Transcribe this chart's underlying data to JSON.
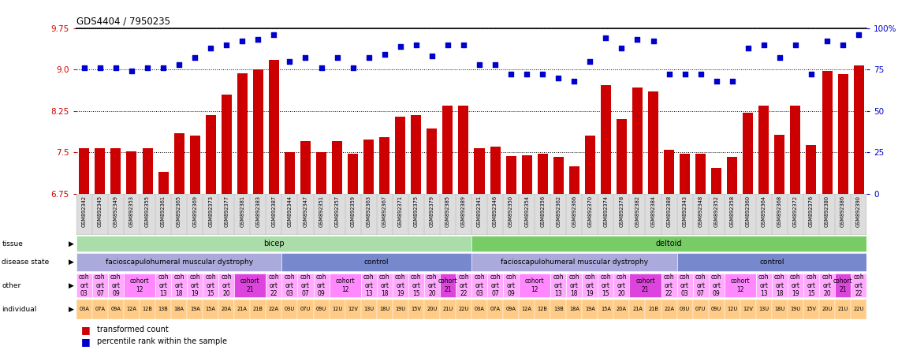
{
  "title": "GDS4404 / 7950235",
  "ylim_left": [
    6.75,
    9.75
  ],
  "ylim_right": [
    0,
    100
  ],
  "yticks_left": [
    6.75,
    7.5,
    8.25,
    9.0,
    9.75
  ],
  "yticks_right": [
    0,
    25,
    50,
    75,
    100
  ],
  "ytick_labels_right": [
    "0",
    "25",
    "50",
    "75",
    "100%"
  ],
  "left_axis_color": "#cc0000",
  "right_axis_color": "#0000cc",
  "bar_color": "#cc0000",
  "dot_color": "#0000cc",
  "legend_bar": "transformed count",
  "legend_dot": "percentile rank within the sample",
  "sample_ids": [
    "GSM892342",
    "GSM892345",
    "GSM892349",
    "GSM892353",
    "GSM892355",
    "GSM892361",
    "GSM892365",
    "GSM892369",
    "GSM892373",
    "GSM892377",
    "GSM892381",
    "GSM892383",
    "GSM892387",
    "GSM892344",
    "GSM892347",
    "GSM892351",
    "GSM892357",
    "GSM892359",
    "GSM892363",
    "GSM892367",
    "GSM892371",
    "GSM892375",
    "GSM892379",
    "GSM892385",
    "GSM892389",
    "GSM892341",
    "GSM892346",
    "GSM892350",
    "GSM892354",
    "GSM892356",
    "GSM892362",
    "GSM892366",
    "GSM892370",
    "GSM892374",
    "GSM892378",
    "GSM892382",
    "GSM892384",
    "GSM892388",
    "GSM892343",
    "GSM892348",
    "GSM892352",
    "GSM892358",
    "GSM892360",
    "GSM892364",
    "GSM892368",
    "GSM892372",
    "GSM892376",
    "GSM892380",
    "GSM892386",
    "GSM892390"
  ],
  "bar_values": [
    7.57,
    7.57,
    7.58,
    7.52,
    7.58,
    7.15,
    7.85,
    7.8,
    8.18,
    8.55,
    8.93,
    9.0,
    9.18,
    7.5,
    7.7,
    7.5,
    7.7,
    7.47,
    7.73,
    7.77,
    8.15,
    8.18,
    7.93,
    8.35,
    8.35,
    7.57,
    7.6,
    7.43,
    7.45,
    7.47,
    7.42,
    7.25,
    7.8,
    8.72,
    8.1,
    8.68,
    8.6,
    7.55,
    7.47,
    7.47,
    7.22,
    7.42,
    8.22,
    8.35,
    7.82,
    8.35,
    7.63,
    8.97,
    8.92,
    9.07
  ],
  "dot_values": [
    76,
    76,
    76,
    74,
    76,
    76,
    78,
    82,
    88,
    90,
    92,
    93,
    96,
    80,
    82,
    76,
    82,
    76,
    82,
    84,
    89,
    90,
    83,
    90,
    90,
    78,
    78,
    72,
    72,
    72,
    70,
    68,
    80,
    94,
    88,
    93,
    92,
    72,
    72,
    72,
    68,
    68,
    88,
    90,
    82,
    90,
    72,
    92,
    90,
    96
  ],
  "n_bicep": 25,
  "n_deltoid": 25,
  "n_bicep_fshd": 13,
  "n_bicep_ctrl": 12,
  "n_deltoid_fshd": 13,
  "n_deltoid_ctrl": 12,
  "tissue_bicep_color": "#99dd88",
  "tissue_deltoid_color": "#88cc77",
  "disease_fshd_color": "#aaaaee",
  "disease_ctrl_color": "#7799cc",
  "cohort_light_color": "#ffaaff",
  "cohort_12_color": "#ff88ff",
  "cohort_21_color": "#dd44dd",
  "individual_color": "#ffcc88",
  "sample_label_bg": "#dddddd"
}
